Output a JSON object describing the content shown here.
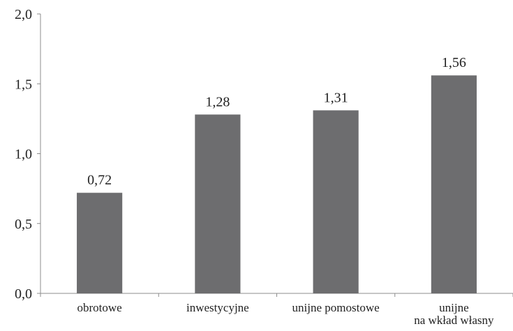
{
  "chart_data": {
    "type": "bar",
    "categories": [
      [
        "obrotowe"
      ],
      [
        "inwestycyjne"
      ],
      [
        "unijne pomostowe"
      ],
      [
        "unijne",
        "na wkład własny"
      ]
    ],
    "values": [
      0.72,
      1.28,
      1.31,
      1.56
    ],
    "value_labels": [
      "0,72",
      "1,28",
      "1,31",
      "1,56"
    ],
    "ylim": [
      0,
      2.0
    ],
    "yticks": [
      0.0,
      0.5,
      1.0,
      1.5,
      2.0
    ],
    "ytick_labels": [
      "0,0",
      "0,5",
      "1,0",
      "1,5",
      "2,0"
    ],
    "title": "",
    "xlabel": "",
    "ylabel": "",
    "grid": false,
    "bar_color": "#6d6d6f"
  }
}
